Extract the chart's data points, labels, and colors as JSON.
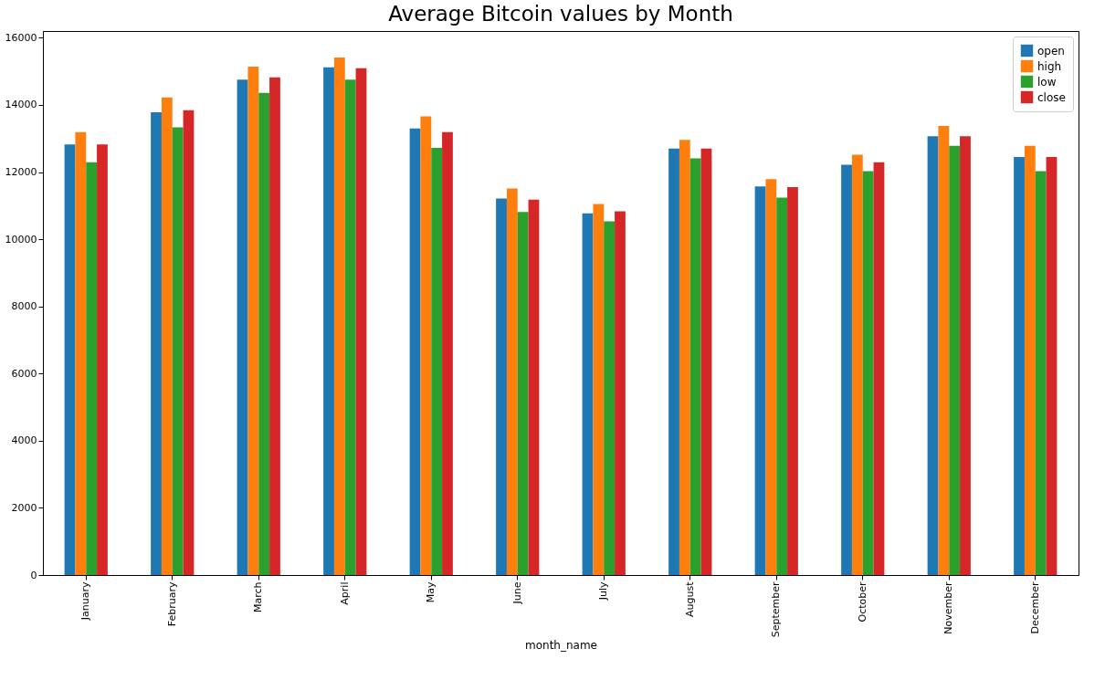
{
  "chart_data": {
    "type": "bar",
    "title": "Average Bitcoin values by Month",
    "xlabel": "month_name",
    "categories": [
      "January",
      "February",
      "March",
      "April",
      "May",
      "June",
      "July",
      "August",
      "September",
      "October",
      "November",
      "December"
    ],
    "series": [
      {
        "name": "open",
        "color": "#1f77b4",
        "values": [
          12820,
          13780,
          14750,
          15120,
          13300,
          11210,
          10770,
          12700,
          11570,
          12220,
          13070,
          12450
        ]
      },
      {
        "name": "high",
        "color": "#ff7f0e",
        "values": [
          13190,
          14220,
          15140,
          15410,
          13660,
          11510,
          11050,
          12960,
          11790,
          12520,
          13370,
          12780
        ]
      },
      {
        "name": "low",
        "color": "#2ca02c",
        "values": [
          12290,
          13330,
          14360,
          14750,
          12720,
          10810,
          10530,
          12410,
          11240,
          12030,
          12780,
          12030
        ]
      },
      {
        "name": "close",
        "color": "#d62728",
        "values": [
          12820,
          13840,
          14820,
          15090,
          13190,
          11180,
          10830,
          12700,
          11550,
          12290,
          13070,
          12450
        ]
      }
    ],
    "ylim": [
      0,
      16200
    ],
    "yticks": [
      0,
      2000,
      4000,
      6000,
      8000,
      10000,
      12000,
      14000,
      16000
    ],
    "grid": false,
    "legend": "top right"
  }
}
